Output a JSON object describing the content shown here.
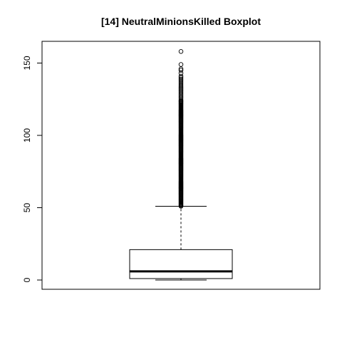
{
  "chart_data": {
    "type": "boxplot",
    "title": "[14] NeutralMinionsKilled Boxplot",
    "xlabel": "",
    "ylabel": "",
    "ylim": [
      -6,
      163
    ],
    "yticks": [
      0,
      50,
      100,
      150
    ],
    "grid": false,
    "box": {
      "min": 0,
      "q1": 1,
      "median": 6,
      "q3": 21,
      "whisker_low": 0,
      "whisker_high": 51
    },
    "outliers_range": [
      51,
      124
    ],
    "outliers_upper": [
      124,
      125,
      126,
      127,
      128,
      129,
      130,
      131,
      132,
      133,
      134,
      135,
      136,
      137,
      138,
      139,
      140,
      141,
      143,
      145,
      146,
      149,
      158
    ]
  }
}
